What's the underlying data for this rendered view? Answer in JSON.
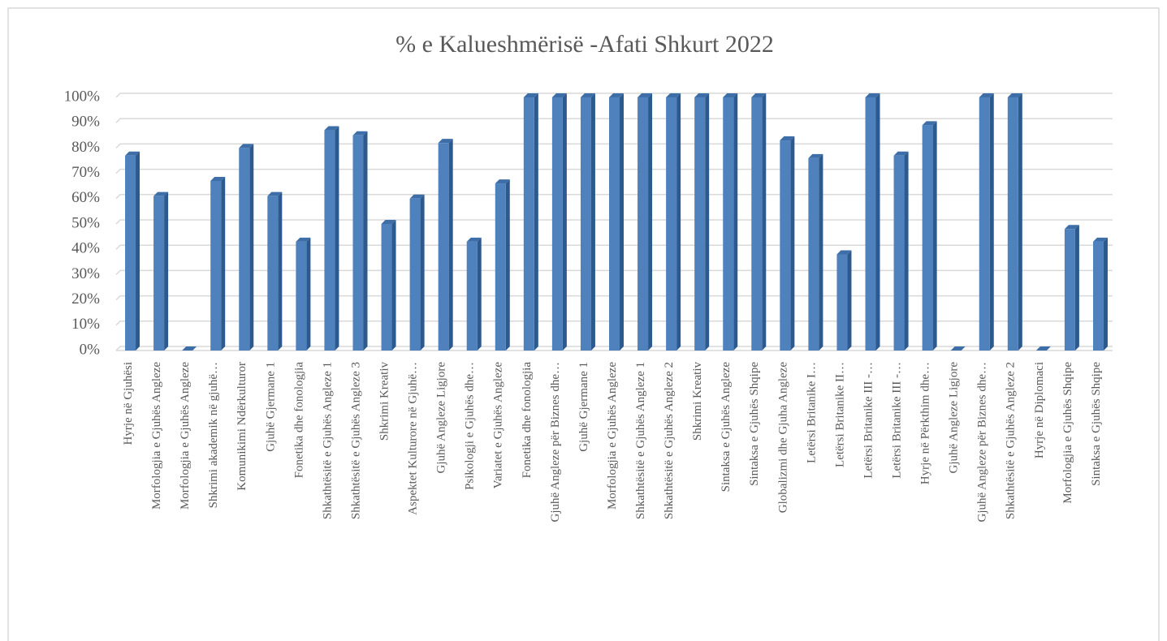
{
  "chart_data": {
    "type": "bar3d",
    "title": "% e Kalueshmërisë -Afati Shkurt 2022",
    "categories": [
      "Hyrje në Gjuhësi",
      "Morfologjia e Gjuhës Angleze",
      "Morfologjia e Gjuhës Angleze",
      "Shkrimi akademik në gjuhë…",
      "Komunikimi Ndërkulturor",
      "Gjuhë Gjermane 1",
      "Fonetika dhe fonologjia",
      "Shkathtësitë e Gjuhës Angleze 1",
      "Shkathtësitë e Gjuhës Angleze 3",
      "Shkrimi Kreativ",
      "Aspektet Kulturore në Gjuhë…",
      "Gjuhë Angleze Ligjore",
      "Psikologji e Gjuhës dhe…",
      "Variatet e Gjuhës Angleze",
      "Fonetika dhe fonologjia",
      "Gjuhë Angleze për Biznes dhe…",
      "Gjuhë Gjermane 1",
      "Morfologjia e Gjuhës Angleze",
      "Shkathtësitë e Gjuhës Angleze 1",
      "Shkathtësitë e Gjuhës Angleze 2",
      "Shkrimi Kreativ",
      "Sintaksa e Gjuhës Angleze",
      "Sintaksa e Gjuhës Shqipe",
      "Globalizmi dhe Gjuha Angleze",
      "Letërsi Britanike I…",
      "Letërsi Britanike II…",
      "Letërsi Britanike III -…",
      "Letërsi Britanike III -…",
      "Hyrje në Përkthim dhe…",
      "Gjuhë Angleze Ligjore",
      "Gjuhë Angleze për Biznes dhe…",
      "Shkathtësitë e Gjuhës Angleze 2",
      "Hyrje në Diplomaci",
      "Morfologjia e Gjuhës Shqipe",
      "Sintaksa e Gjuhës Shqipe"
    ],
    "values": [
      77,
      61,
      0,
      67,
      80,
      61,
      43,
      87,
      85,
      50,
      60,
      82,
      43,
      66,
      100,
      100,
      100,
      100,
      100,
      100,
      100,
      100,
      100,
      83,
      76,
      38,
      100,
      77,
      89,
      0,
      100,
      100,
      0,
      48,
      43
    ],
    "color": "#4f81bd",
    "ylim": [
      0,
      100
    ],
    "yticks": [
      {
        "value": 0,
        "label": "0%"
      },
      {
        "value": 10,
        "label": "10%"
      },
      {
        "value": 20,
        "label": "20%"
      },
      {
        "value": 30,
        "label": "30%"
      },
      {
        "value": 40,
        "label": "40%"
      },
      {
        "value": 50,
        "label": "50%"
      },
      {
        "value": 60,
        "label": "60%"
      },
      {
        "value": 70,
        "label": "70%"
      },
      {
        "value": 80,
        "label": "80%"
      },
      {
        "value": 90,
        "label": "90%"
      },
      {
        "value": 100,
        "label": "100%"
      }
    ],
    "grid": true
  }
}
